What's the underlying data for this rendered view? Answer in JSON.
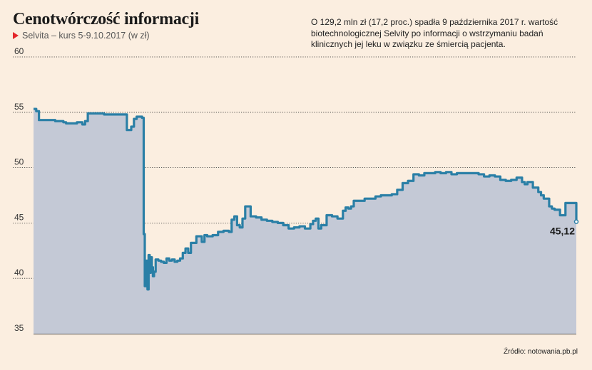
{
  "header": {
    "title": "Cenotwórczość informacji",
    "subtitle": "Selvita – kurs 5-9.10.2017 (w zł)"
  },
  "note": "O 129,2 mln zł (17,2 proc.) spadła 9 października 2017 r. wartość biotechnologicznej Selvity po informacji o wstrzymaniu badań klinicznych jej leku w związku ze śmiercią pacjenta.",
  "source": "Źródło: notowania.pb.pl",
  "colors": {
    "line": "#2a7fa6",
    "area": "#c4c9d6",
    "grid": "#2a2a2a",
    "marker": "#e4262b",
    "background": "#fbeee0"
  },
  "chart_data": {
    "type": "area",
    "title": "Cenotwórczość informacji",
    "subtitle": "Selvita – kurs 5-9.10.2017 (w zł)",
    "ylim": [
      35,
      60
    ],
    "yticks": [
      35,
      40,
      45,
      50,
      55,
      60
    ],
    "grid": "horizontal dotted",
    "last_label": "45,12",
    "x": [
      0.0,
      0.005,
      0.01,
      0.02,
      0.03,
      0.04,
      0.05,
      0.055,
      0.06,
      0.07,
      0.08,
      0.09,
      0.095,
      0.1,
      0.11,
      0.12,
      0.13,
      0.14,
      0.15,
      0.16,
      0.17,
      0.172,
      0.18,
      0.185,
      0.19,
      0.2,
      0.203,
      0.205,
      0.207,
      0.21,
      0.212,
      0.214,
      0.216,
      0.218,
      0.22,
      0.222,
      0.225,
      0.23,
      0.235,
      0.24,
      0.245,
      0.25,
      0.255,
      0.26,
      0.265,
      0.27,
      0.275,
      0.28,
      0.285,
      0.29,
      0.3,
      0.31,
      0.315,
      0.32,
      0.33,
      0.34,
      0.35,
      0.36,
      0.365,
      0.37,
      0.375,
      0.38,
      0.385,
      0.39,
      0.4,
      0.41,
      0.42,
      0.43,
      0.44,
      0.45,
      0.46,
      0.47,
      0.48,
      0.49,
      0.5,
      0.51,
      0.515,
      0.52,
      0.525,
      0.53,
      0.54,
      0.55,
      0.56,
      0.57,
      0.575,
      0.58,
      0.585,
      0.59,
      0.6,
      0.61,
      0.62,
      0.63,
      0.64,
      0.65,
      0.66,
      0.67,
      0.68,
      0.69,
      0.7,
      0.71,
      0.72,
      0.73,
      0.74,
      0.75,
      0.76,
      0.77,
      0.78,
      0.79,
      0.8,
      0.81,
      0.82,
      0.83,
      0.84,
      0.85,
      0.86,
      0.87,
      0.88,
      0.89,
      0.9,
      0.905,
      0.91,
      0.92,
      0.93,
      0.935,
      0.94,
      0.95,
      0.955,
      0.96,
      0.97,
      0.98,
      0.985,
      0.99,
      1.0
    ],
    "y": [
      55.3,
      55.1,
      54.3,
      54.3,
      54.3,
      54.2,
      54.2,
      54.1,
      54.0,
      54.0,
      54.1,
      53.9,
      54.2,
      54.9,
      54.9,
      54.9,
      54.8,
      54.8,
      54.8,
      54.8,
      54.8,
      53.4,
      53.7,
      54.4,
      54.6,
      54.5,
      44.0,
      39.3,
      41.6,
      39.0,
      42.1,
      40.5,
      41.9,
      41.0,
      40.2,
      40.6,
      41.7,
      41.6,
      41.5,
      41.4,
      41.8,
      41.6,
      41.7,
      41.5,
      41.6,
      41.8,
      42.3,
      42.7,
      42.3,
      43.2,
      43.8,
      43.3,
      43.9,
      43.8,
      43.9,
      44.2,
      44.3,
      44.2,
      45.3,
      45.6,
      44.8,
      44.6,
      45.4,
      46.5,
      45.6,
      45.5,
      45.3,
      45.2,
      45.1,
      45.0,
      44.8,
      44.5,
      44.6,
      44.7,
      44.5,
      44.9,
      45.2,
      45.4,
      44.5,
      44.8,
      45.7,
      45.6,
      45.4,
      46.1,
      46.4,
      46.3,
      46.5,
      47.0,
      47.0,
      47.2,
      47.2,
      47.4,
      47.5,
      47.5,
      47.6,
      48.0,
      48.6,
      48.8,
      49.4,
      49.3,
      49.5,
      49.5,
      49.6,
      49.5,
      49.6,
      49.4,
      49.5,
      49.5,
      49.5,
      49.5,
      49.4,
      49.2,
      49.3,
      49.2,
      48.9,
      48.8,
      48.9,
      49.1,
      48.7,
      48.5,
      48.7,
      48.2,
      47.8,
      47.5,
      47.2,
      46.5,
      46.3,
      46.2,
      45.7,
      46.8,
      46.8,
      46.8,
      45.12
    ]
  }
}
